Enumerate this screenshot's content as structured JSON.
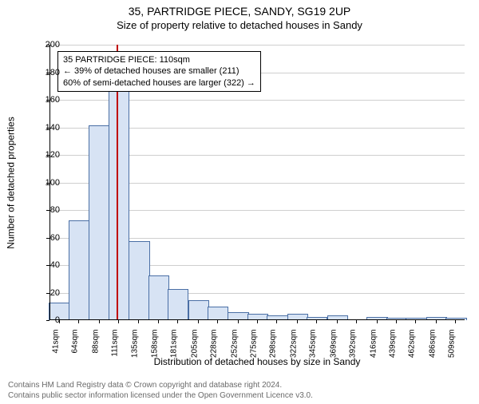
{
  "title_main": "35, PARTRIDGE PIECE, SANDY, SG19 2UP",
  "title_sub": "Size of property relative to detached houses in Sandy",
  "y_axis_label": "Number of detached properties",
  "x_axis_label": "Distribution of detached houses by size in Sandy",
  "footer_line1": "Contains HM Land Registry data © Crown copyright and database right 2024.",
  "footer_line2": "Contains public sector information licensed under the Open Government Licence v3.0.",
  "annotation": {
    "line1": "35 PARTRIDGE PIECE: 110sqm",
    "line2": "← 39% of detached houses are smaller (211)",
    "line3": "60% of semi-detached houses are larger (322) →"
  },
  "chart": {
    "type": "histogram",
    "ylim_max": 200,
    "y_ticks": [
      0,
      20,
      40,
      60,
      80,
      100,
      120,
      140,
      160,
      180,
      200
    ],
    "x_min": 30,
    "x_max": 520,
    "x_tick_labels": [
      "41sqm",
      "64sqm",
      "88sqm",
      "111sqm",
      "135sqm",
      "158sqm",
      "181sqm",
      "205sqm",
      "228sqm",
      "252sqm",
      "275sqm",
      "298sqm",
      "322sqm",
      "345sqm",
      "369sqm",
      "392sqm",
      "416sqm",
      "439sqm",
      "462sqm",
      "486sqm",
      "509sqm"
    ],
    "x_tick_values": [
      41,
      64,
      88,
      111,
      135,
      158,
      181,
      205,
      228,
      252,
      275,
      298,
      322,
      345,
      369,
      392,
      416,
      439,
      462,
      486,
      509
    ],
    "bar_width_sqm": 23,
    "bar_values": [
      12,
      72,
      141,
      168,
      57,
      32,
      22,
      14,
      9,
      5,
      4,
      3,
      4,
      2,
      3,
      0,
      2,
      1,
      1,
      2,
      1
    ],
    "marker_sqm": 110,
    "bar_fill": "#d7e3f4",
    "bar_stroke": "#4a6fa5",
    "marker_color": "#c00000",
    "grid_color": "#cfcfcf",
    "background_color": "#ffffff"
  }
}
